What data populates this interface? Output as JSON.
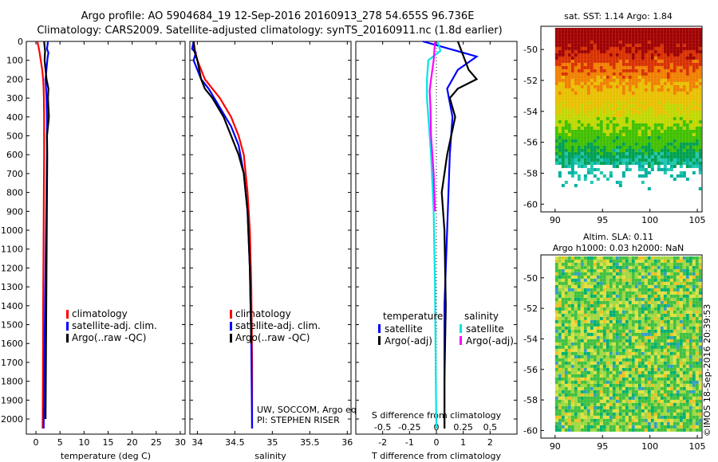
{
  "header": {
    "title_line1": "Argo profile: AO 5904684_19 12-Sep-2016 20160913_278 54.655S 96.736E",
    "title_line2": "Climatology: CARS2009. Satellite-adjusted climatology: synTS_20160911.nc (1.8d earlier)"
  },
  "colors": {
    "climatology": "#ff0000",
    "satellite": "#0000ff",
    "argo": "#000000",
    "sat_salinity": "#00e5e5",
    "argo_salinity": "#ff00ff"
  },
  "chart_data": [
    {
      "type": "line",
      "id": "temperature",
      "xlabel": "temperature (deg C)",
      "xlim": [
        -2,
        31
      ],
      "xticks": [
        0,
        5,
        10,
        15,
        20,
        25,
        30
      ],
      "xtick_labels": [
        "0",
        "5",
        "10",
        "15",
        "20",
        "25",
        "30"
      ],
      "ylim": [
        0,
        2080
      ],
      "y_reversed": true,
      "yticks": [
        0,
        100,
        200,
        300,
        400,
        500,
        600,
        700,
        800,
        900,
        1000,
        1100,
        1200,
        1300,
        1400,
        1500,
        1600,
        1700,
        1800,
        1900,
        2000
      ],
      "legend": [
        "climatology",
        "satellite-adj. clim.",
        "Argo(..raw -QC)"
      ],
      "series": [
        {
          "name": "climatology",
          "color": "#ff0000",
          "x": [
            0.3,
            0.7,
            1.0,
            1.3,
            1.5,
            1.6,
            1.65,
            1.7,
            1.7,
            1.65,
            1.6,
            1.5,
            1.45,
            1.4
          ],
          "y": [
            0,
            50,
            100,
            150,
            200,
            250,
            300,
            400,
            600,
            800,
            1000,
            1400,
            1800,
            2050
          ]
        },
        {
          "name": "satellite-adj. clim.",
          "color": "#0000ff",
          "x": [
            2.5,
            2.3,
            2.6,
            2.4,
            2.0,
            2.1,
            2.2,
            2.3,
            2.3,
            2.2,
            2.1,
            1.9,
            1.7,
            1.6
          ],
          "y": [
            0,
            40,
            60,
            90,
            200,
            250,
            300,
            400,
            600,
            800,
            1000,
            1400,
            1800,
            2050
          ]
        },
        {
          "name": "Argo(..raw -QC)",
          "color": "#000000",
          "x": [
            1.7,
            1.9,
            1.8,
            2.2,
            2.6,
            2.5,
            2.7,
            2.3,
            2.35,
            2.3,
            2.25,
            2.2,
            2.1,
            2.0
          ],
          "y": [
            0,
            50,
            100,
            200,
            250,
            300,
            400,
            500,
            600,
            800,
            1000,
            1200,
            1600,
            2000
          ]
        }
      ]
    },
    {
      "type": "line",
      "id": "salinity",
      "xlabel": "salinity",
      "xlim": [
        33.9,
        36.05
      ],
      "xticks": [
        34,
        34.5,
        35,
        35.5,
        36
      ],
      "xtick_labels": [
        "34",
        "34.5",
        "35",
        "35.5",
        "36"
      ],
      "ylim": [
        0,
        2080
      ],
      "y_reversed": true,
      "legend": [
        "climatology",
        "satellite-adj. clim.",
        "Argo(..raw -QC)"
      ],
      "annotation": [
        "UW, SOCCOM, Argo equivalent",
        "PI: STEPHEN RISER"
      ],
      "series": [
        {
          "name": "climatology",
          "color": "#ff0000",
          "x": [
            33.95,
            33.97,
            34.0,
            34.05,
            34.1,
            34.2,
            34.3,
            34.45,
            34.55,
            34.62,
            34.67,
            34.7,
            34.72,
            34.73,
            34.73
          ],
          "y": [
            0,
            50,
            100,
            150,
            200,
            250,
            300,
            400,
            500,
            600,
            800,
            1000,
            1300,
            1700,
            2050
          ]
        },
        {
          "name": "satellite-adj. clim.",
          "color": "#0000ff",
          "x": [
            33.95,
            33.93,
            33.98,
            33.95,
            34.0,
            34.05,
            34.15,
            34.3,
            34.45,
            34.55,
            34.62,
            34.67,
            34.7,
            34.72,
            34.73
          ],
          "y": [
            0,
            40,
            60,
            100,
            150,
            200,
            250,
            350,
            450,
            550,
            700,
            900,
            1200,
            1600,
            2050
          ]
        },
        {
          "name": "Argo(..raw -QC)",
          "color": "#000000",
          "x": [
            33.95,
            33.96,
            34.0,
            34.05,
            34.1,
            34.2,
            34.35,
            34.45,
            34.55,
            34.62,
            34.67,
            34.7,
            34.72
          ],
          "y": [
            0,
            50,
            100,
            200,
            250,
            300,
            400,
            500,
            600,
            700,
            900,
            1200,
            1600
          ]
        }
      ]
    },
    {
      "type": "line",
      "id": "differences",
      "xlabel": "T difference from climatology",
      "xlim": [
        -3,
        3
      ],
      "xticks": [
        -2,
        -1,
        0,
        1,
        2
      ],
      "xtick_labels": [
        "-2",
        "-1",
        "0",
        "1",
        "2"
      ],
      "x2label": "S difference from climatology",
      "x2ticks": [
        -0.5,
        -0.25,
        0,
        0.25,
        0.5
      ],
      "x2tick_labels": [
        "-0.5",
        "-0.25",
        "0",
        "0.25",
        "0.5"
      ],
      "x2lim": [
        -0.75,
        0.75
      ],
      "ylim": [
        0,
        2080
      ],
      "y_reversed": true,
      "legend_groups": [
        {
          "title": "temperature",
          "items": [
            "satellite",
            "Argo(-adj)"
          ]
        },
        {
          "title": "salinity",
          "items": [
            "satellite",
            "Argo(-adj)"
          ]
        }
      ],
      "series": [
        {
          "name": "temperature satellite",
          "color": "#0000ff",
          "x": [
            -0.5,
            1.0,
            1.5,
            1.2,
            0.8,
            0.4,
            0.6,
            0.5,
            0.4,
            0.3,
            0.3,
            0.3
          ],
          "y": [
            0,
            60,
            80,
            110,
            150,
            250,
            400,
            600,
            1000,
            1400,
            1800,
            2050
          ]
        },
        {
          "name": "temperature Argo(-adj)",
          "color": "#000000",
          "x": [
            0.8,
            1.2,
            1.5,
            0.8,
            0.5,
            0.7,
            0.4,
            0.2,
            0.3,
            0.35,
            0.3,
            0.3
          ],
          "y": [
            0,
            150,
            200,
            250,
            300,
            400,
            600,
            800,
            1000,
            1400,
            1800,
            2050
          ]
        },
        {
          "name": "salinity satellite",
          "color": "#00e5e5",
          "x": [
            0.05,
            0.15,
            -0.3,
            -0.35,
            -0.35,
            -0.3,
            -0.2,
            -0.1,
            -0.05,
            -0.02,
            0.0
          ],
          "y": [
            0,
            50,
            100,
            200,
            300,
            400,
            600,
            900,
            1300,
            1800,
            2050
          ]
        },
        {
          "name": "salinity Argo(-adj)",
          "color": "#ff00ff",
          "x": [
            -0.05,
            -0.1,
            -0.2,
            -0.25,
            -0.22,
            -0.2,
            -0.1,
            -0.05
          ],
          "y": [
            0,
            100,
            200,
            260,
            350,
            500,
            700,
            900
          ]
        }
      ]
    },
    {
      "type": "heatmap",
      "id": "sst_map",
      "title": "sat. SST: 1.14 Argo: 1.84",
      "xlim": [
        88.5,
        105.5
      ],
      "ylim": [
        -60.5,
        -48.5
      ],
      "xticks": [
        90,
        95,
        100,
        105
      ],
      "xtick_labels": [
        "90",
        "95",
        "100",
        "105"
      ],
      "yticks": [
        -50,
        -52,
        -54,
        -56,
        -58,
        -60
      ],
      "ytick_labels": [
        "-50",
        "-52",
        "-54",
        "-56",
        "-58",
        "-60"
      ]
    },
    {
      "type": "heatmap",
      "id": "sla_map",
      "title": "Altim. SLA: 0.11",
      "subtitle": "Argo h1000: 0.03 h2000: NaN",
      "xlim": [
        88.5,
        105.5
      ],
      "ylim": [
        -60.5,
        -48.5
      ],
      "xticks": [
        90,
        95,
        100,
        105
      ],
      "xtick_labels": [
        "90",
        "95",
        "100",
        "105"
      ],
      "yticks": [
        -50,
        -52,
        -54,
        -56,
        -58,
        -60
      ],
      "ytick_labels": [
        "-50",
        "-52",
        "-54",
        "-56",
        "-58",
        "-60"
      ]
    }
  ],
  "footer": {
    "stamp": "©IMOS 18-Sep-2016 20:39:53"
  }
}
